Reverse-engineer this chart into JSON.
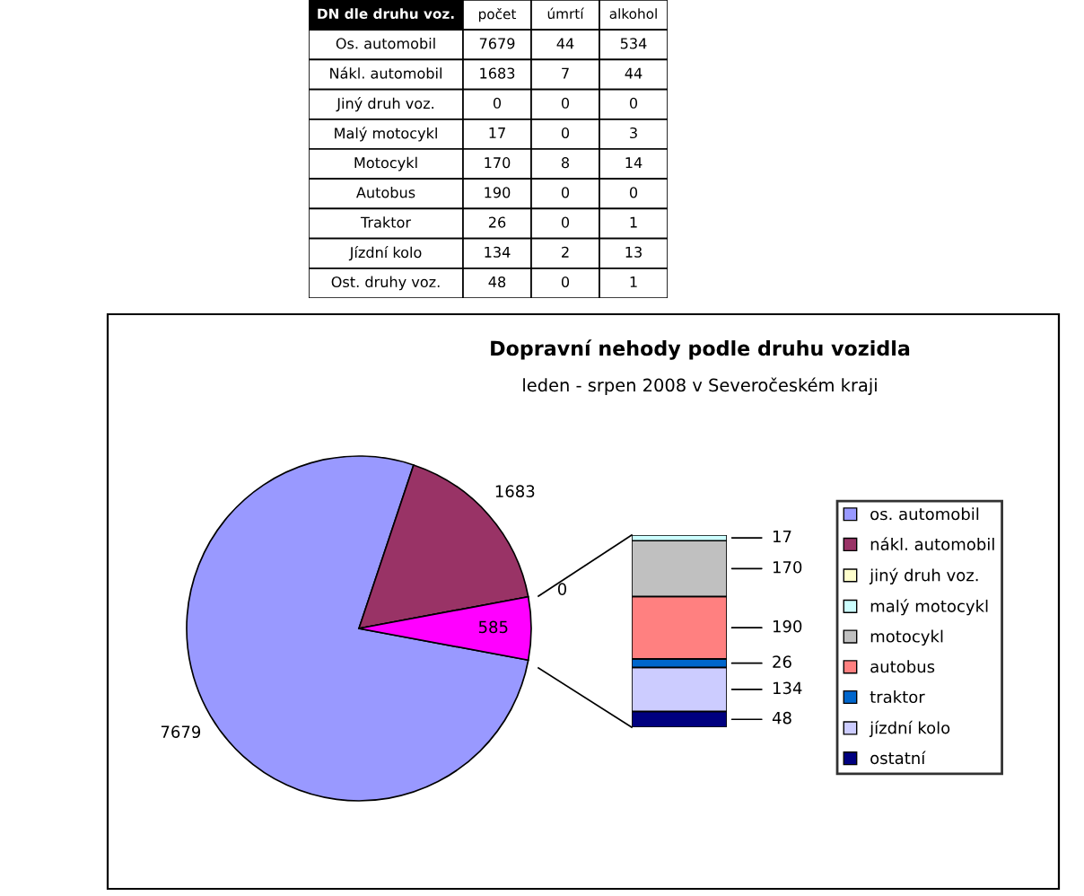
{
  "chart_data": [
    {
      "type": "other",
      "categories": [
        "DN dle druhu voz.",
        "počet",
        "úmrtí",
        "alkohol"
      ],
      "annotations": [
        "Os. automobil",
        "7679",
        "44",
        "534",
        "Nákl. automobil",
        "1683",
        "7",
        "44",
        "Jiný druh voz.",
        "0",
        "0",
        "0",
        "Malý motocykl",
        "17",
        "0",
        "3",
        "Motocykl",
        "170",
        "8",
        "14",
        "Autobus",
        "190",
        "0",
        "0",
        "Traktor",
        "26",
        "0",
        "1",
        "Jízdní kolo",
        "134",
        "2",
        "13",
        "Ost. druhy voz.",
        "48",
        "0",
        "1"
      ]
    },
    {
      "type": "pie",
      "title": "Dopravní nehody podle druhu vozidla",
      "subtitle": "leden - srpen 2008 v Severočeském kraji",
      "categories": [
        "os. automobil",
        "nákl. automobil",
        "jiný druh voz.",
        null
      ],
      "values": [
        7679,
        1683,
        0,
        585
      ],
      "colors": [
        "#9999ff",
        "#993366",
        "#ffffcc",
        "#ff00ff"
      ],
      "data_labels": true,
      "legend": "right"
    },
    {
      "type": "bar",
      "stacked": true,
      "categories": [
        null
      ],
      "data_labels": true,
      "legend": "right",
      "series": [
        {
          "name": "ostatní",
          "color": "#000080",
          "values": [
            48
          ]
        },
        {
          "name": "jízdní kolo",
          "color": "#ccccff",
          "values": [
            134
          ]
        },
        {
          "name": "traktor",
          "color": "#0066cc",
          "values": [
            26
          ]
        },
        {
          "name": "autobus",
          "color": "#ff8080",
          "values": [
            190
          ]
        },
        {
          "name": "motocykl",
          "color": "#c0c0c0",
          "values": [
            170
          ]
        },
        {
          "name": "malý motocykl",
          "color": "#ccffff",
          "values": [
            17
          ]
        }
      ]
    }
  ]
}
